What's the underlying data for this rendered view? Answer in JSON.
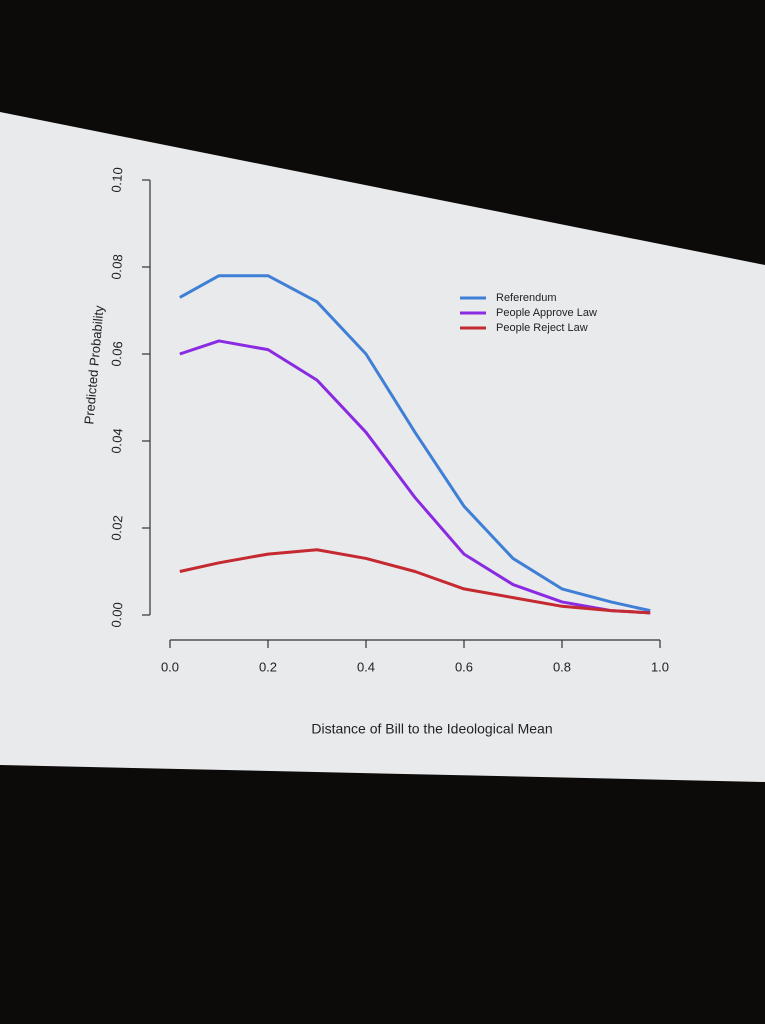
{
  "chart_data": {
    "type": "line",
    "x_label": "Distance of Bill to the Ideological Mean",
    "y_label": "Predicted Probability",
    "x": [
      0.02,
      0.1,
      0.2,
      0.3,
      0.4,
      0.5,
      0.6,
      0.7,
      0.8,
      0.9,
      0.98
    ],
    "series": [
      {
        "name": "Referendum",
        "color": "#3f7fd6",
        "values": [
          0.073,
          0.078,
          0.078,
          0.072,
          0.06,
          0.042,
          0.025,
          0.013,
          0.006,
          0.003,
          0.001
        ]
      },
      {
        "name": "People Approve Law",
        "color": "#8a2be2",
        "values": [
          0.06,
          0.063,
          0.061,
          0.054,
          0.042,
          0.027,
          0.014,
          0.007,
          0.003,
          0.001,
          0.0005
        ]
      },
      {
        "name": "People Reject Law",
        "color": "#c42a30",
        "values": [
          0.01,
          0.012,
          0.014,
          0.015,
          0.013,
          0.01,
          0.006,
          0.004,
          0.002,
          0.001,
          0.0005
        ]
      }
    ],
    "xlim": [
      0,
      1
    ],
    "xticks": [
      {
        "value": 0,
        "label": "0.0"
      },
      0.2,
      0.4,
      0.6,
      0.8,
      {
        "value": 1,
        "label": "1.0"
      }
    ],
    "ylim": [
      0,
      0.1
    ],
    "yticks": [
      {
        "value": 0,
        "label": "0.00"
      },
      {
        "value": 0.02,
        "label": "0.02"
      },
      {
        "value": 0.04,
        "label": "0.04"
      },
      {
        "value": 0.06,
        "label": "0.06"
      },
      {
        "value": 0.08,
        "label": "0.08"
      },
      {
        "value": 0.1,
        "label": "0.10"
      }
    ],
    "legend": "top-right"
  }
}
